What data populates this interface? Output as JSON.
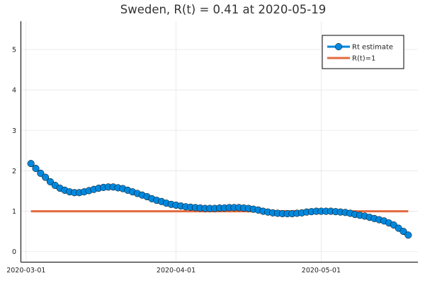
{
  "chart_data": {
    "type": "line",
    "title": "Sweden, R(t) = 0.41 at 2020-05-19",
    "xlabel": "",
    "ylabel": "",
    "x_start": "2020-03-02",
    "x_tick_labels": [
      "2020-03-01",
      "2020-04-01",
      "2020-05-01"
    ],
    "y_tick_labels": [
      "0",
      "1",
      "2",
      "3",
      "4",
      "5"
    ],
    "ylim": [
      -0.25,
      5.7
    ],
    "xlim": [
      "2020-02-29",
      "2020-05-21"
    ],
    "grid": true,
    "legend_position": "top-right",
    "series": [
      {
        "name": "Rt estimate",
        "color": "#0088dd",
        "marker": "circle",
        "x": [
          "2020-03-02",
          "2020-03-03",
          "2020-03-04",
          "2020-03-05",
          "2020-03-06",
          "2020-03-07",
          "2020-03-08",
          "2020-03-09",
          "2020-03-10",
          "2020-03-11",
          "2020-03-12",
          "2020-03-13",
          "2020-03-14",
          "2020-03-15",
          "2020-03-16",
          "2020-03-17",
          "2020-03-18",
          "2020-03-19",
          "2020-03-20",
          "2020-03-21",
          "2020-03-22",
          "2020-03-23",
          "2020-03-24",
          "2020-03-25",
          "2020-03-26",
          "2020-03-27",
          "2020-03-28",
          "2020-03-29",
          "2020-03-30",
          "2020-03-31",
          "2020-04-01",
          "2020-04-02",
          "2020-04-03",
          "2020-04-04",
          "2020-04-05",
          "2020-04-06",
          "2020-04-07",
          "2020-04-08",
          "2020-04-09",
          "2020-04-10",
          "2020-04-11",
          "2020-04-12",
          "2020-04-13",
          "2020-04-14",
          "2020-04-15",
          "2020-04-16",
          "2020-04-17",
          "2020-04-18",
          "2020-04-19",
          "2020-04-20",
          "2020-04-21",
          "2020-04-22",
          "2020-04-23",
          "2020-04-24",
          "2020-04-25",
          "2020-04-26",
          "2020-04-27",
          "2020-04-28",
          "2020-04-29",
          "2020-04-30",
          "2020-05-01",
          "2020-05-02",
          "2020-05-03",
          "2020-05-04",
          "2020-05-05",
          "2020-05-06",
          "2020-05-07",
          "2020-05-08",
          "2020-05-09",
          "2020-05-10",
          "2020-05-11",
          "2020-05-12",
          "2020-05-13",
          "2020-05-14",
          "2020-05-15",
          "2020-05-16",
          "2020-05-17",
          "2020-05-18",
          "2020-05-19"
        ],
        "values": [
          2.18,
          2.06,
          1.94,
          1.84,
          1.73,
          1.64,
          1.57,
          1.52,
          1.48,
          1.46,
          1.46,
          1.48,
          1.51,
          1.54,
          1.57,
          1.59,
          1.6,
          1.6,
          1.58,
          1.56,
          1.52,
          1.48,
          1.44,
          1.4,
          1.36,
          1.31,
          1.27,
          1.24,
          1.2,
          1.17,
          1.15,
          1.13,
          1.11,
          1.1,
          1.09,
          1.08,
          1.07,
          1.07,
          1.07,
          1.08,
          1.08,
          1.09,
          1.09,
          1.09,
          1.08,
          1.07,
          1.05,
          1.03,
          1.0,
          0.98,
          0.96,
          0.95,
          0.94,
          0.94,
          0.94,
          0.95,
          0.96,
          0.98,
          0.99,
          1.0,
          1.0,
          1.0,
          1.0,
          0.99,
          0.98,
          0.97,
          0.95,
          0.92,
          0.9,
          0.88,
          0.85,
          0.82,
          0.79,
          0.76,
          0.71,
          0.66,
          0.58,
          0.5,
          0.41
        ]
      },
      {
        "name": "R(t)=1",
        "color": "#e26a3f",
        "marker": "none",
        "x": [
          "2020-03-02",
          "2020-05-19"
        ],
        "values": [
          1,
          1
        ]
      }
    ]
  }
}
